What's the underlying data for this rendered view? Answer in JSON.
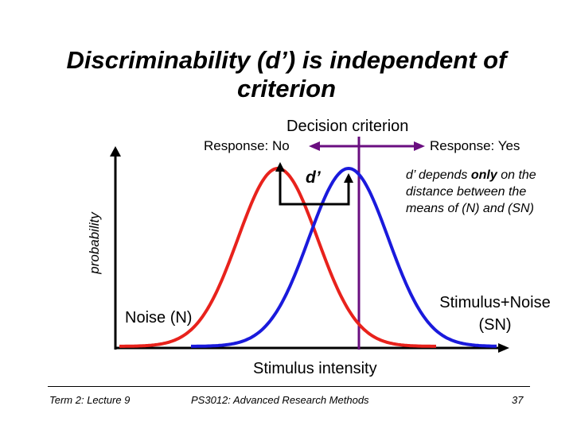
{
  "title": "Discriminability (d’) is independent of criterion",
  "decision_criterion_label": "Decision criterion",
  "response_no": "Response: No",
  "response_yes": "Response: Yes",
  "d_prime_label": "d’",
  "y_axis_label": "probability",
  "x_axis_label": "Stimulus intensity",
  "annotation": {
    "prefix": "d’ depends ",
    "emphasis": "only",
    "suffix": " on the distance between the means of (N) and (SN)"
  },
  "noise_label": "Noise (N)",
  "signal_label": "Stimulus+Noise (SN)",
  "colors": {
    "noise_curve": "#e8221c",
    "signal_curve": "#1a1adc",
    "criterion": "#6a0e80",
    "axis": "#000000"
  },
  "footer": {
    "left": "Term 2: Lecture 9",
    "center": "PS3012: Advanced Research Methods",
    "page": "37"
  }
}
